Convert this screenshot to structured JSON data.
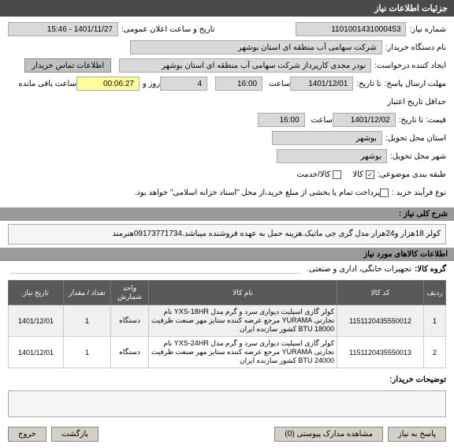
{
  "header": {
    "title": "جزئیات اطلاعات نیاز"
  },
  "labels": {
    "need_no": "شماره نیاز:",
    "buyer_org": "نام دستگاه خریدار:",
    "creator": "ایجاد کننده درخواست:",
    "resp_deadline": "مهلت ارسال پاسخ:",
    "until": "تا تاریخ:",
    "credit_hist": "حداقل تاریخ اعتبار",
    "price": "قیمت: تا تاریخ:",
    "state_exec": "استان محل تحویل:",
    "city_exec": "شهر محل تحویل:",
    "classify": "طبقه بندی موضوعی:",
    "proc_type": "نوع فرآیند خرید :",
    "announce_datetime": "تاریخ و ساعت اعلان عمومی:",
    "contact": "اطلاعات تماس خریدار",
    "at": "ساعت",
    "day_and": "روز و",
    "remain": "ساعت باقی مانده",
    "payment_note": "پرداخت تمام یا بخشی از مبلغ خرید،از محل \"اسناد خزانه اسلامی\" خواهد بود."
  },
  "fields": {
    "need_no": "1101001431000453",
    "buyer_org": "شرکت سهامی آب منطقه ای استان بوشهر",
    "creator": "نودر مجدی کارپرداز شرکت سهامی آب منطقه ای استان بوشهر",
    "deadline_date": "1401/12/01",
    "deadline_time": "16:00",
    "days": "4",
    "timer": "00:06:27",
    "ann_datetime": "1401/11/27 - 15:46",
    "credit_date": "1401/12/02",
    "credit_time": "16:00",
    "state": "بوشهر",
    "city": "بوشهر"
  },
  "classify_opts": {
    "goods": {
      "label": "کالا",
      "checked": true
    },
    "service": {
      "label": "کالا/خدمت",
      "checked": false
    }
  },
  "section_general": {
    "title": "شرح کلی نیاز :"
  },
  "general_desc": "کولر 18هزار و24هزار مدل گری جی ماتیک.هزینه حمل به عهده فروشنده میباشد.09173771734هنرمند",
  "section_goods": {
    "title": "اطلاعات کالاهای مورد نیاز"
  },
  "goods_group_lbl": "گروه کالا:",
  "goods_group_val": "تجهیزات خانگی، اداری و صنعتی.",
  "table": {
    "cols": {
      "idx": "ردیف",
      "code": "کد کالا",
      "name": "نام کالا",
      "unit": "واحد شمارش",
      "qty": "تعداد / مقدار",
      "date": "تاریخ نیاز"
    },
    "rows": [
      {
        "idx": "1",
        "code": "1151120435550012",
        "name": "کولر گازی اسپلیت دیواری سرد و گرم مدل YXS-18HR نام تجارتی YURAMA مرجع عرضه کننده ستایز مهر صنعت ظرفیت 18000 BTU کشور سازنده ایران",
        "unit": "دستگاه",
        "qty": "1",
        "date": "1401/12/01"
      },
      {
        "idx": "2",
        "code": "1151120435550013",
        "name": "کولر گازی اسپلیت دیواری سرد و گرم مدل YXS-24HR نام تجارتی YURAMA مرجع عرضه کننده ستایز مهر صنعت ظرفیت 24000 BTU کشور سازنده ایران",
        "unit": "دستگاه",
        "qty": "1",
        "date": "1401/12/01"
      }
    ]
  },
  "buyer_notes_lbl": "توضیحات خریدار:",
  "footer": {
    "reply": "پاسخ به نیاز",
    "view_docs": "مشاهده مدارک پیوستی   (0)",
    "back": "بازگشت",
    "exit": "خروج"
  }
}
